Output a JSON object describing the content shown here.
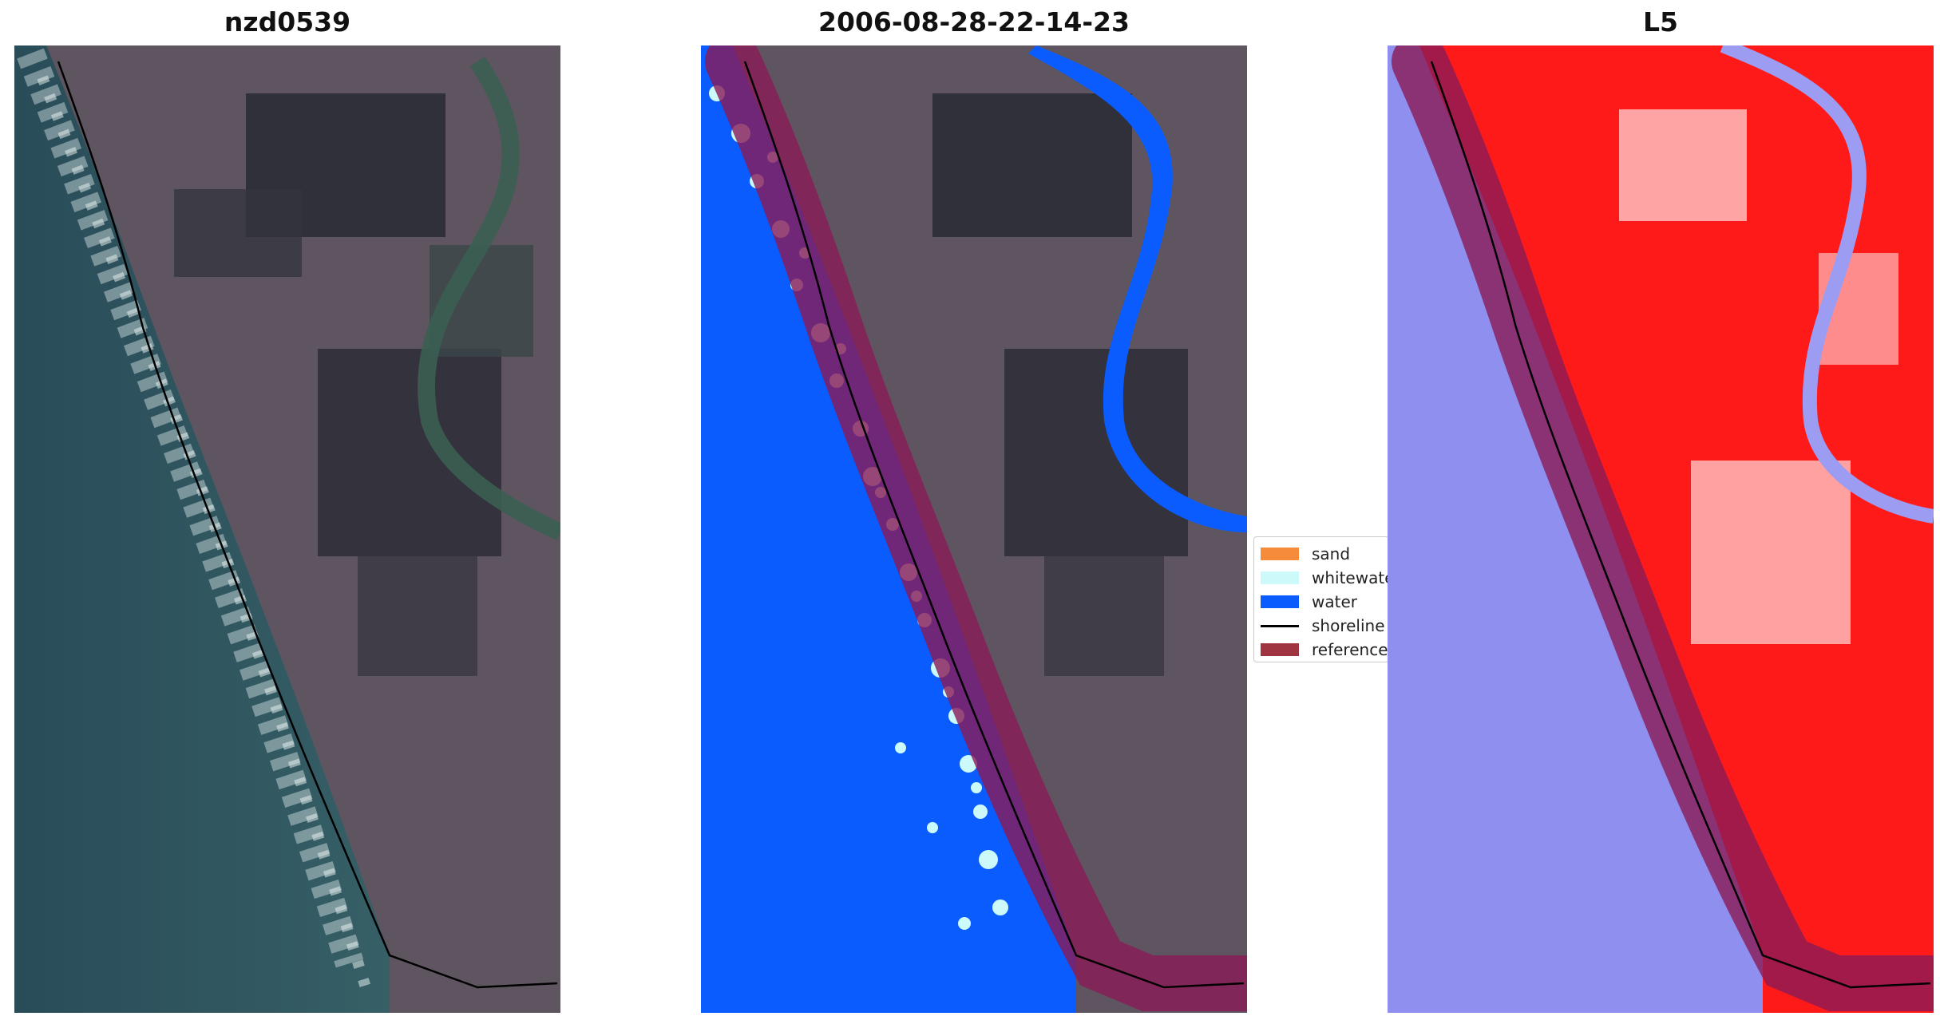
{
  "panels": {
    "left_title": "nzd0539",
    "middle_title": "2006-08-28-22-14-23",
    "right_title": "L5"
  },
  "legend": {
    "items": [
      {
        "label": "sand",
        "color": "#f58b3b"
      },
      {
        "label": "whitewate",
        "color": "#ccfafa"
      },
      {
        "label": "water",
        "color": "#0a5cff"
      },
      {
        "label": "shoreline",
        "color": "#000000"
      },
      {
        "label": "reference",
        "color": "#9e3540"
      }
    ]
  },
  "colors": {
    "water": "#0a5cff",
    "whitewater": "#ccfafa",
    "reference_band": "#8a1a56",
    "land_dark": "#3f3d47",
    "ocean_rgb": "#2f5560",
    "index_red": "#ff1a1a",
    "index_blue": "#8f8ff0"
  }
}
